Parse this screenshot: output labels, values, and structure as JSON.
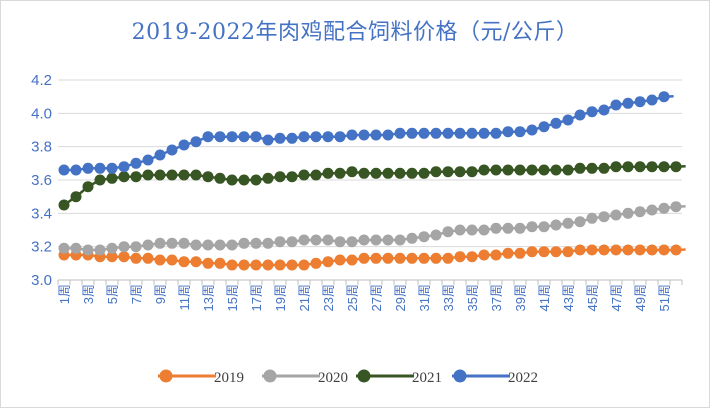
{
  "chart_data": {
    "type": "line",
    "title": "2019-2022年肉鸡配合饲料价格（元/公斤）",
    "xlabel": "",
    "ylabel": "",
    "ylim": [
      3.0,
      4.2
    ],
    "yticks": [
      "3.0",
      "3.2",
      "3.4",
      "3.6",
      "3.8",
      "4.0",
      "4.2"
    ],
    "x_tick_labels": [
      "1周",
      "3周",
      "5周",
      "7周",
      "9周",
      "11周",
      "13周",
      "15周",
      "17周",
      "19周",
      "21周",
      "23周",
      "25周",
      "27周",
      "29周",
      "31周",
      "33周",
      "35周",
      "37周",
      "39周",
      "41周",
      "43周",
      "45周",
      "47周",
      "49周",
      "51周"
    ],
    "grid": true,
    "legend_position": "bottom",
    "series": [
      {
        "name": "2019",
        "color": "#ed7d31",
        "values": [
          3.15,
          3.15,
          3.15,
          3.14,
          3.14,
          3.14,
          3.13,
          3.13,
          3.12,
          3.12,
          3.11,
          3.11,
          3.1,
          3.1,
          3.09,
          3.09,
          3.09,
          3.09,
          3.09,
          3.09,
          3.09,
          3.1,
          3.11,
          3.12,
          3.12,
          3.13,
          3.13,
          3.13,
          3.13,
          3.13,
          3.13,
          3.13,
          3.13,
          3.14,
          3.14,
          3.15,
          3.15,
          3.16,
          3.16,
          3.17,
          3.17,
          3.17,
          3.17,
          3.18,
          3.18,
          3.18,
          3.18,
          3.18,
          3.18,
          3.18,
          3.18,
          3.18
        ]
      },
      {
        "name": "2020",
        "color": "#a5a5a5",
        "values": [
          3.19,
          3.19,
          3.18,
          3.18,
          3.19,
          3.2,
          3.2,
          3.21,
          3.22,
          3.22,
          3.22,
          3.21,
          3.21,
          3.21,
          3.21,
          3.22,
          3.22,
          3.22,
          3.23,
          3.23,
          3.24,
          3.24,
          3.24,
          3.23,
          3.23,
          3.24,
          3.24,
          3.24,
          3.24,
          3.25,
          3.26,
          3.27,
          3.29,
          3.3,
          3.3,
          3.3,
          3.31,
          3.31,
          3.31,
          3.32,
          3.32,
          3.33,
          3.34,
          3.35,
          3.37,
          3.38,
          3.39,
          3.4,
          3.41,
          3.42,
          3.43,
          3.44
        ]
      },
      {
        "name": "2021",
        "color": "#375623",
        "values": [
          3.45,
          3.5,
          3.56,
          3.6,
          3.61,
          3.62,
          3.62,
          3.63,
          3.63,
          3.63,
          3.63,
          3.63,
          3.62,
          3.61,
          3.6,
          3.6,
          3.6,
          3.61,
          3.62,
          3.62,
          3.63,
          3.63,
          3.64,
          3.64,
          3.65,
          3.64,
          3.64,
          3.64,
          3.64,
          3.64,
          3.64,
          3.65,
          3.65,
          3.65,
          3.65,
          3.66,
          3.66,
          3.66,
          3.66,
          3.66,
          3.66,
          3.66,
          3.66,
          3.67,
          3.67,
          3.67,
          3.68,
          3.68,
          3.68,
          3.68,
          3.68,
          3.68
        ]
      },
      {
        "name": "2022",
        "color": "#4472c4",
        "values": [
          3.66,
          3.66,
          3.67,
          3.67,
          3.67,
          3.68,
          3.7,
          3.72,
          3.75,
          3.78,
          3.81,
          3.83,
          3.86,
          3.86,
          3.86,
          3.86,
          3.86,
          3.84,
          3.85,
          3.85,
          3.86,
          3.86,
          3.86,
          3.86,
          3.87,
          3.87,
          3.87,
          3.87,
          3.88,
          3.88,
          3.88,
          3.88,
          3.88,
          3.88,
          3.88,
          3.88,
          3.88,
          3.89,
          3.89,
          3.9,
          3.92,
          3.94,
          3.96,
          3.99,
          4.01,
          4.02,
          4.05,
          4.06,
          4.07,
          4.08,
          4.1
        ]
      }
    ]
  }
}
